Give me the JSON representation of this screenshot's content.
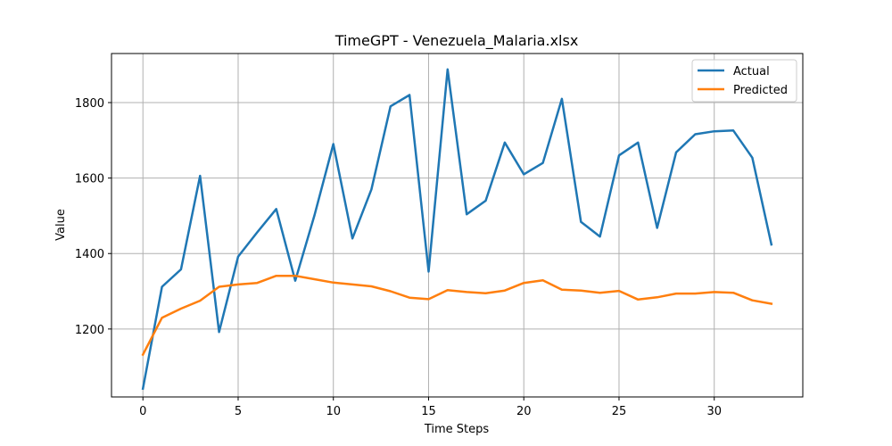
{
  "chart_data": {
    "type": "line",
    "title": "TimeGPT - Venezuela_Malaria.xlsx",
    "xlabel": "Time Steps",
    "ylabel": "Value",
    "xlim": [
      -1.65,
      34.65
    ],
    "ylim": [
      1020,
      1930
    ],
    "xticks": [
      0,
      5,
      10,
      15,
      20,
      25,
      30
    ],
    "yticks": [
      1200,
      1400,
      1600,
      1800
    ],
    "grid": true,
    "legend_position": "top-right",
    "x": [
      0,
      1,
      2,
      3,
      4,
      5,
      6,
      7,
      8,
      9,
      10,
      11,
      12,
      13,
      14,
      15,
      16,
      17,
      18,
      19,
      20,
      21,
      22,
      23,
      24,
      25,
      26,
      27,
      28,
      29,
      30,
      31,
      32,
      33
    ],
    "series": [
      {
        "name": "Actual",
        "color": "#1f77b4",
        "values": [
          1042,
          1312,
          1358,
          1606,
          1192,
          1392,
          1456,
          1518,
          1328,
          1500,
          1690,
          1440,
          1570,
          1790,
          1820,
          1352,
          1888,
          1504,
          1540,
          1694,
          1610,
          1640,
          1810,
          1484,
          1445,
          1660,
          1694,
          1468,
          1668,
          1716,
          1724,
          1726,
          1654,
          1424
        ]
      },
      {
        "name": "Predicted",
        "color": "#ff7f0e",
        "values": [
          1132,
          1230,
          1254,
          1275,
          1312,
          1318,
          1322,
          1341,
          1341,
          1332,
          1323,
          1318,
          1313,
          1300,
          1283,
          1279,
          1303,
          1298,
          1295,
          1302,
          1322,
          1329,
          1304,
          1302,
          1296,
          1301,
          1278,
          1284,
          1294,
          1294,
          1298,
          1296,
          1276,
          1267
        ]
      }
    ]
  }
}
